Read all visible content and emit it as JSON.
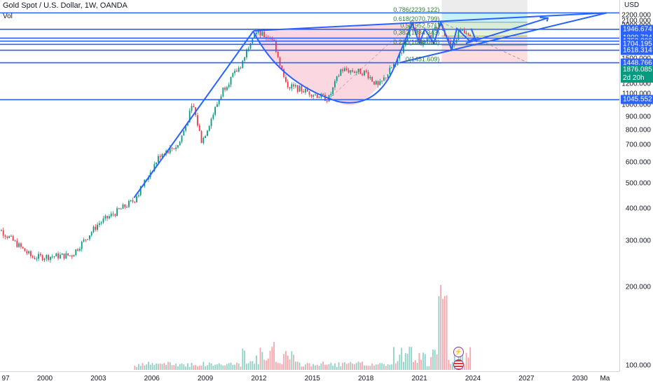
{
  "header": {
    "symbol_title": "Gold Spot / U.S. Dollar, 1W, OANDA",
    "vol_label": "Vol"
  },
  "price_axis": {
    "unit": "USD",
    "ticks": [
      "2200.000",
      "2100.000",
      "2000.000",
      "1900.000",
      "1800.000",
      "1700.000",
      "1600.000",
      "1500.000",
      "1400.000",
      "1300.000",
      "1200.000",
      "1100.000",
      "1000.000",
      "900.000",
      "800.000",
      "700.000",
      "600.000",
      "500.000",
      "400.000",
      "300.000",
      "200.000",
      "100.000"
    ],
    "tags": [
      {
        "label": "1946.674",
        "value": 1946.674
      },
      {
        "label": "1800.724",
        "value": 1800.724
      },
      {
        "label": "1753.202",
        "value": 1753.202
      },
      {
        "label": "1704.195",
        "value": 1704.195
      },
      {
        "label": "1618.314",
        "value": 1618.314
      },
      {
        "label": "1448.766",
        "value": 1448.766
      },
      {
        "label": "1045.552",
        "value": 1045.552
      }
    ],
    "current_price": "1876.085",
    "countdown": "2d 20h"
  },
  "time_axis": {
    "labels": [
      "97",
      "2000",
      "2003",
      "2006",
      "2009",
      "2012",
      "2015",
      "2018",
      "2021",
      "2024",
      "2027",
      "2030",
      "Ma"
    ]
  },
  "chart_data": {
    "type": "candlestick",
    "title": "Gold Spot / U.S. Dollar, 1W, OANDA",
    "unit": "USD",
    "ylim": [
      100,
      2260
    ],
    "price_scale": "log",
    "xlim": [
      1996.9,
      2031.5
    ],
    "key_points": [
      {
        "x": 1997.0,
        "y": 355
      },
      {
        "x": 1999.3,
        "y": 260
      },
      {
        "x": 2001.5,
        "y": 265
      },
      {
        "x": 2003.0,
        "y": 350
      },
      {
        "x": 2005.0,
        "y": 430
      },
      {
        "x": 2006.5,
        "y": 650
      },
      {
        "x": 2007.5,
        "y": 700
      },
      {
        "x": 2008.3,
        "y": 1000
      },
      {
        "x": 2008.8,
        "y": 720
      },
      {
        "x": 2010.0,
        "y": 1150
      },
      {
        "x": 2011.0,
        "y": 1420
      },
      {
        "x": 2011.7,
        "y": 1900
      },
      {
        "x": 2012.8,
        "y": 1790
      },
      {
        "x": 2013.5,
        "y": 1200
      },
      {
        "x": 2015.9,
        "y": 1050
      },
      {
        "x": 2016.6,
        "y": 1365
      },
      {
        "x": 2018.0,
        "y": 1330
      },
      {
        "x": 2018.7,
        "y": 1170
      },
      {
        "x": 2019.8,
        "y": 1500
      },
      {
        "x": 2020.6,
        "y": 2070
      },
      {
        "x": 2021.2,
        "y": 1680
      },
      {
        "x": 2022.2,
        "y": 2070
      },
      {
        "x": 2022.8,
        "y": 1620
      },
      {
        "x": 2023.3,
        "y": 1960
      },
      {
        "x": 2023.9,
        "y": 1880
      }
    ],
    "horizontal_levels": [
      1946.674,
      1800.724,
      1753.202,
      1704.195,
      1618.314,
      1448.766,
      1045.552
    ],
    "fibonacci": [
      {
        "ratio": "0.786",
        "price": "2239.122"
      },
      {
        "ratio": "0.618",
        "price": "2070.799"
      },
      {
        "ratio": "0.5",
        "price": "1952.571"
      },
      {
        "ratio": "0.382",
        "price": "1834.343"
      },
      {
        "ratio": "0.236",
        "price": "1688.063"
      },
      {
        "ratio": "0",
        "price": "1451.609"
      }
    ],
    "annotations": [
      "cup and handle",
      "rising wedge channel",
      "projection arrows"
    ],
    "volume_peak_year": 2022.3
  },
  "colors": {
    "up": "#089981",
    "down": "#f23645",
    "drawing": "#2962ff",
    "cup_fill": "#f7b6c8",
    "fib_top": "#b2ebf2",
    "fib_green": "#c8e6c9",
    "fib_orange": "#ffe0b2",
    "fib_red": "#ffcdd2"
  }
}
